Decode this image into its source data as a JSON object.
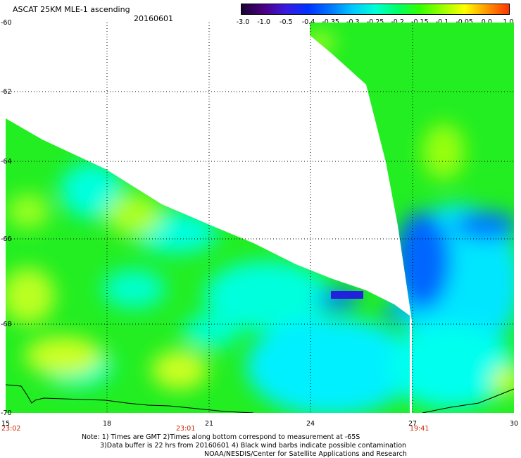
{
  "header": {
    "title": "ASCAT 25KM MLE-1 ascending",
    "date": "20160601"
  },
  "colorbar": {
    "labels": [
      "-3.0",
      "-1.0",
      "-0.5",
      "-0.4",
      "-0.35",
      "-0.3",
      "-0.25",
      "-0.2",
      "-0.15",
      "-0.1",
      "-0.05",
      "0.0",
      "1.0"
    ],
    "colors": [
      "#1a0033",
      "#4b0082",
      "#3a1ae0",
      "#0033ff",
      "#0077ff",
      "#00c8ff",
      "#00ffd5",
      "#00ff66",
      "#33ff00",
      "#99ff00",
      "#ffff00",
      "#ff9900",
      "#ff3300"
    ]
  },
  "axes": {
    "lat_labels": [
      "-60",
      "-62",
      "-64",
      "-66",
      "-68",
      "-70"
    ],
    "lon_labels": [
      "15",
      "18",
      "21",
      "24",
      "27",
      "30"
    ],
    "time_labels": [
      "23:02",
      "23:01",
      "19:41"
    ],
    "time_color": "#cc2200"
  },
  "notes": {
    "line1": "Note: 1) Times are GMT 2)Times along bottom correspond to measurement at -65S",
    "line2": "3)Data buffer is 22 hrs from 20160601 4) Black wind barbs indicate possible contamination",
    "line3": "NOAA/NESDIS/Center for Satellite Applications and Research"
  },
  "map_colors": {
    "green": "#22ee22",
    "lime": "#88ff00",
    "yellowgreen": "#ccff22",
    "cyan": "#00ffee",
    "sky": "#00c8ff",
    "blue": "#0055ff",
    "darkblue": "#2222dd"
  }
}
